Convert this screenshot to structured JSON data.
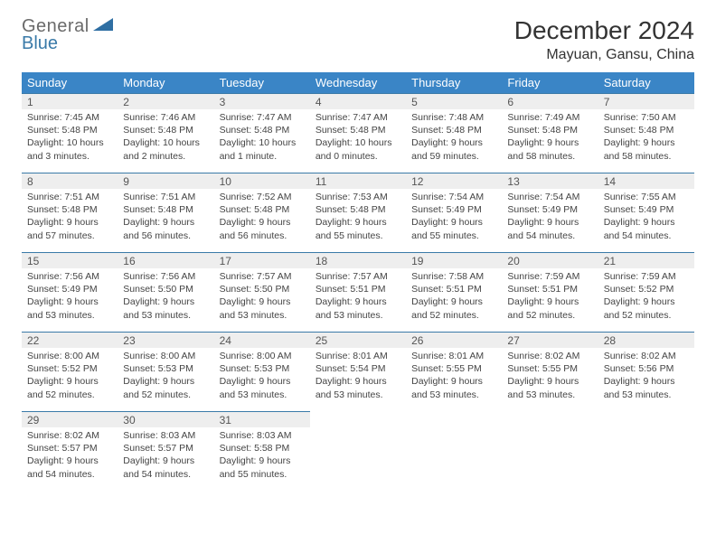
{
  "logo": {
    "word1": "General",
    "word2": "Blue",
    "gray": "#6a6a6a",
    "blue": "#3a7aa8",
    "tri_fill": "#2f6fa3"
  },
  "header": {
    "title": "December 2024",
    "location": "Mayuan, Gansu, China"
  },
  "colors": {
    "header_bg": "#3a85c6",
    "header_fg": "#ffffff",
    "cell_rule": "#3a7aa8",
    "daynum_bg": "#eeeeee",
    "daynum_fg": "#555555",
    "body_fg": "#444444",
    "page_bg": "#ffffff"
  },
  "weekdays": [
    "Sunday",
    "Monday",
    "Tuesday",
    "Wednesday",
    "Thursday",
    "Friday",
    "Saturday"
  ],
  "weeks": [
    [
      {
        "n": "1",
        "sr": "7:45 AM",
        "ss": "5:48 PM",
        "dl": "10 hours and 3 minutes."
      },
      {
        "n": "2",
        "sr": "7:46 AM",
        "ss": "5:48 PM",
        "dl": "10 hours and 2 minutes."
      },
      {
        "n": "3",
        "sr": "7:47 AM",
        "ss": "5:48 PM",
        "dl": "10 hours and 1 minute."
      },
      {
        "n": "4",
        "sr": "7:47 AM",
        "ss": "5:48 PM",
        "dl": "10 hours and 0 minutes."
      },
      {
        "n": "5",
        "sr": "7:48 AM",
        "ss": "5:48 PM",
        "dl": "9 hours and 59 minutes."
      },
      {
        "n": "6",
        "sr": "7:49 AM",
        "ss": "5:48 PM",
        "dl": "9 hours and 58 minutes."
      },
      {
        "n": "7",
        "sr": "7:50 AM",
        "ss": "5:48 PM",
        "dl": "9 hours and 58 minutes."
      }
    ],
    [
      {
        "n": "8",
        "sr": "7:51 AM",
        "ss": "5:48 PM",
        "dl": "9 hours and 57 minutes."
      },
      {
        "n": "9",
        "sr": "7:51 AM",
        "ss": "5:48 PM",
        "dl": "9 hours and 56 minutes."
      },
      {
        "n": "10",
        "sr": "7:52 AM",
        "ss": "5:48 PM",
        "dl": "9 hours and 56 minutes."
      },
      {
        "n": "11",
        "sr": "7:53 AM",
        "ss": "5:48 PM",
        "dl": "9 hours and 55 minutes."
      },
      {
        "n": "12",
        "sr": "7:54 AM",
        "ss": "5:49 PM",
        "dl": "9 hours and 55 minutes."
      },
      {
        "n": "13",
        "sr": "7:54 AM",
        "ss": "5:49 PM",
        "dl": "9 hours and 54 minutes."
      },
      {
        "n": "14",
        "sr": "7:55 AM",
        "ss": "5:49 PM",
        "dl": "9 hours and 54 minutes."
      }
    ],
    [
      {
        "n": "15",
        "sr": "7:56 AM",
        "ss": "5:49 PM",
        "dl": "9 hours and 53 minutes."
      },
      {
        "n": "16",
        "sr": "7:56 AM",
        "ss": "5:50 PM",
        "dl": "9 hours and 53 minutes."
      },
      {
        "n": "17",
        "sr": "7:57 AM",
        "ss": "5:50 PM",
        "dl": "9 hours and 53 minutes."
      },
      {
        "n": "18",
        "sr": "7:57 AM",
        "ss": "5:51 PM",
        "dl": "9 hours and 53 minutes."
      },
      {
        "n": "19",
        "sr": "7:58 AM",
        "ss": "5:51 PM",
        "dl": "9 hours and 52 minutes."
      },
      {
        "n": "20",
        "sr": "7:59 AM",
        "ss": "5:51 PM",
        "dl": "9 hours and 52 minutes."
      },
      {
        "n": "21",
        "sr": "7:59 AM",
        "ss": "5:52 PM",
        "dl": "9 hours and 52 minutes."
      }
    ],
    [
      {
        "n": "22",
        "sr": "8:00 AM",
        "ss": "5:52 PM",
        "dl": "9 hours and 52 minutes."
      },
      {
        "n": "23",
        "sr": "8:00 AM",
        "ss": "5:53 PM",
        "dl": "9 hours and 52 minutes."
      },
      {
        "n": "24",
        "sr": "8:00 AM",
        "ss": "5:53 PM",
        "dl": "9 hours and 53 minutes."
      },
      {
        "n": "25",
        "sr": "8:01 AM",
        "ss": "5:54 PM",
        "dl": "9 hours and 53 minutes."
      },
      {
        "n": "26",
        "sr": "8:01 AM",
        "ss": "5:55 PM",
        "dl": "9 hours and 53 minutes."
      },
      {
        "n": "27",
        "sr": "8:02 AM",
        "ss": "5:55 PM",
        "dl": "9 hours and 53 minutes."
      },
      {
        "n": "28",
        "sr": "8:02 AM",
        "ss": "5:56 PM",
        "dl": "9 hours and 53 minutes."
      }
    ],
    [
      {
        "n": "29",
        "sr": "8:02 AM",
        "ss": "5:57 PM",
        "dl": "9 hours and 54 minutes."
      },
      {
        "n": "30",
        "sr": "8:03 AM",
        "ss": "5:57 PM",
        "dl": "9 hours and 54 minutes."
      },
      {
        "n": "31",
        "sr": "8:03 AM",
        "ss": "5:58 PM",
        "dl": "9 hours and 55 minutes."
      },
      null,
      null,
      null,
      null
    ]
  ],
  "labels": {
    "sunrise": "Sunrise:",
    "sunset": "Sunset:",
    "daylight": "Daylight:"
  }
}
